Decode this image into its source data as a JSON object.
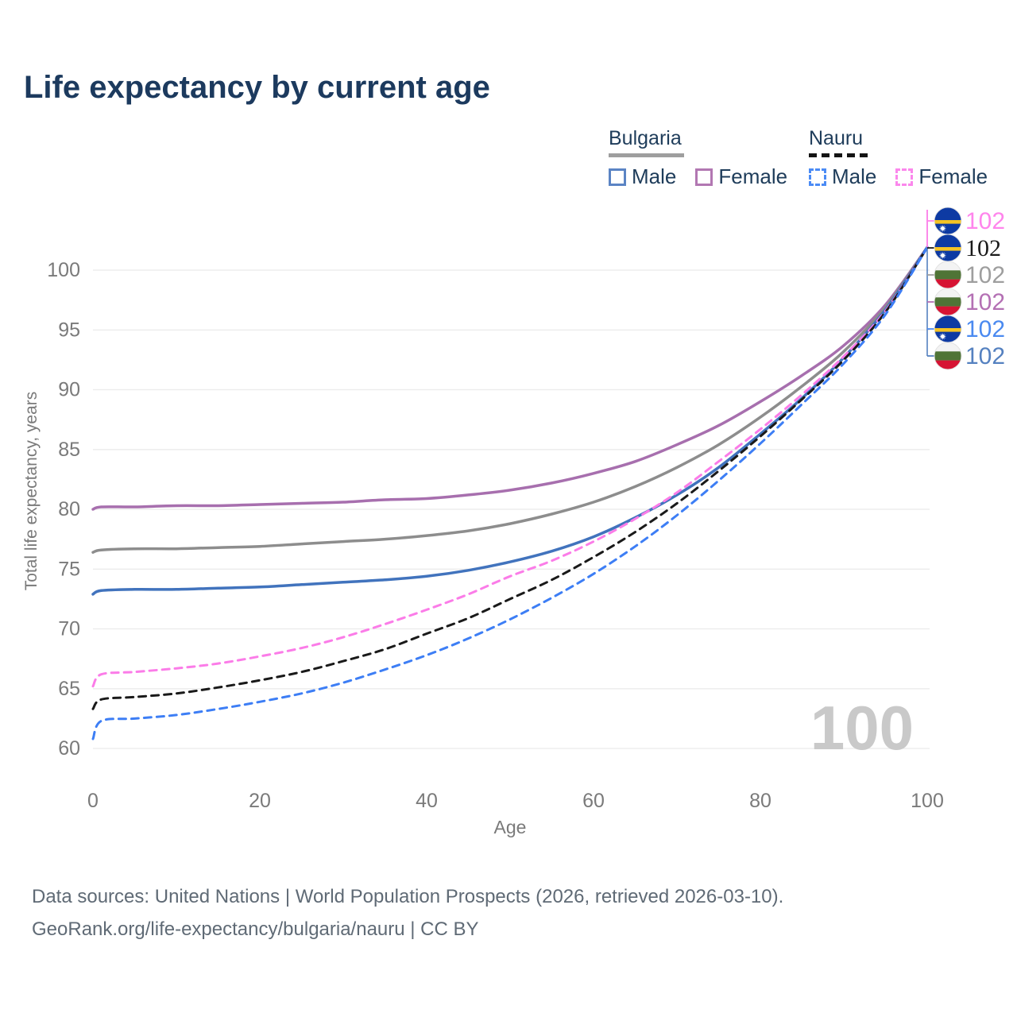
{
  "title": "Life expectancy by current age",
  "legend": {
    "groups": [
      {
        "name": "Bulgaria",
        "underline_style": "solid",
        "underline_color": "#9e9e9e",
        "items": [
          {
            "label": "Male",
            "box_color": "#5b84c4",
            "dashed": false
          },
          {
            "label": "Female",
            "box_color": "#b277b2",
            "dashed": false
          }
        ]
      },
      {
        "name": "Nauru",
        "underline_style": "dashed",
        "underline_color": "#141414",
        "items": [
          {
            "label": "Male",
            "box_color": "#4b8bf5",
            "dashed": true
          },
          {
            "label": "Female",
            "box_color": "#fb87ec",
            "dashed": true
          }
        ]
      }
    ]
  },
  "watermark": "100",
  "chart_data": {
    "type": "line",
    "title": "Life expectancy by current age",
    "xlabel": "Age",
    "ylabel": "Total life expectancy, years",
    "x_ticks": [
      0,
      20,
      40,
      60,
      80,
      100
    ],
    "y_ticks": [
      60,
      65,
      70,
      75,
      80,
      85,
      90,
      95,
      100
    ],
    "x_range": [
      0,
      100
    ],
    "y_range": [
      58,
      103.5
    ],
    "grid": "horizontal",
    "ages": [
      0,
      1,
      5,
      10,
      15,
      20,
      25,
      30,
      35,
      40,
      45,
      50,
      55,
      60,
      65,
      70,
      75,
      80,
      85,
      90,
      95,
      100
    ],
    "series": [
      {
        "key": "bulgaria_female",
        "name": "Bulgaria Female",
        "country": "Bulgaria",
        "sex": "Female",
        "color": "#a76fae",
        "dashed": false,
        "values": [
          80.0,
          80.2,
          80.2,
          80.3,
          80.3,
          80.4,
          80.5,
          80.6,
          80.8,
          80.9,
          81.2,
          81.6,
          82.2,
          83.0,
          84.0,
          85.4,
          87.0,
          89.0,
          91.2,
          93.7,
          97.1,
          101.9
        ]
      },
      {
        "key": "bulgaria_both",
        "name": "Bulgaria",
        "country": "Bulgaria",
        "sex": "Both",
        "color": "#8d8d8d",
        "dashed": false,
        "values": [
          76.4,
          76.6,
          76.7,
          76.7,
          76.8,
          76.9,
          77.1,
          77.3,
          77.5,
          77.8,
          78.2,
          78.8,
          79.6,
          80.6,
          81.9,
          83.5,
          85.4,
          87.7,
          90.3,
          93.2,
          96.9,
          101.9
        ]
      },
      {
        "key": "bulgaria_male",
        "name": "Bulgaria Male",
        "country": "Bulgaria",
        "sex": "Male",
        "color": "#4173bd",
        "dashed": false,
        "values": [
          72.9,
          73.2,
          73.3,
          73.3,
          73.4,
          73.5,
          73.7,
          73.9,
          74.1,
          74.4,
          74.9,
          75.6,
          76.5,
          77.7,
          79.3,
          81.2,
          83.5,
          86.3,
          89.3,
          92.7,
          96.7,
          101.9
        ]
      },
      {
        "key": "nauru_female",
        "name": "Nauru Female",
        "country": "Nauru",
        "sex": "Female",
        "color": "#fb7ce8",
        "dashed": true,
        "values": [
          65.2,
          66.2,
          66.4,
          66.7,
          67.1,
          67.7,
          68.4,
          69.3,
          70.4,
          71.6,
          72.9,
          74.4,
          75.7,
          77.3,
          79.2,
          81.4,
          84.0,
          86.7,
          89.6,
          92.8,
          96.6,
          101.9
        ]
      },
      {
        "key": "nauru_both",
        "name": "Nauru",
        "country": "Nauru",
        "sex": "Both",
        "color": "#1a1a1a",
        "dashed": true,
        "values": [
          63.3,
          64.1,
          64.3,
          64.6,
          65.1,
          65.7,
          66.4,
          67.3,
          68.3,
          69.6,
          70.9,
          72.5,
          74.1,
          76.0,
          78.1,
          80.5,
          83.2,
          86.1,
          89.2,
          92.5,
          96.5,
          101.9
        ]
      },
      {
        "key": "nauru_male",
        "name": "Nauru Male",
        "country": "Nauru",
        "sex": "Male",
        "color": "#3d7ef5",
        "dashed": true,
        "values": [
          60.8,
          62.3,
          62.5,
          62.8,
          63.3,
          63.9,
          64.6,
          65.5,
          66.6,
          67.8,
          69.2,
          70.8,
          72.6,
          74.6,
          76.9,
          79.5,
          82.4,
          85.5,
          88.8,
          92.2,
          96.3,
          101.9
        ]
      }
    ],
    "end_labels": [
      {
        "series": "nauru_female",
        "value": "102",
        "color": "#ff85ec",
        "flag": "nauru",
        "serif": false
      },
      {
        "series": "nauru_both",
        "value": "102",
        "color": "#1a1a1a",
        "flag": "nauru",
        "serif": true
      },
      {
        "series": "bulgaria_both",
        "value": "102",
        "color": "#9e9e9e",
        "flag": "bulgaria",
        "serif": false
      },
      {
        "series": "bulgaria_female",
        "value": "102",
        "color": "#b470b4",
        "flag": "bulgaria",
        "serif": false
      },
      {
        "series": "nauru_male",
        "value": "102",
        "color": "#4b8af0",
        "flag": "nauru",
        "serif": false
      },
      {
        "series": "bulgaria_male",
        "value": "102",
        "color": "#5581c0",
        "flag": "bulgaria",
        "serif": false
      }
    ]
  },
  "colors": {
    "title_text": "#1c3a5e",
    "axis_text": "#7a7a7a",
    "gridline": "#ebebeb",
    "watermark": "#c9c9c9",
    "footer_text": "#5f6a75",
    "leader_top": "#fb7ce8",
    "leader_bottom": "#5581c0"
  },
  "flags": {
    "nauru": {
      "field": "#0d3aa3",
      "stripe": "#f5c324",
      "star": "#ffffff"
    },
    "bulgaria": {
      "top": "#f3f3f3",
      "middle": "#4f7436",
      "bottom": "#d61333"
    }
  },
  "footer": {
    "line1": "Data sources: United Nations | World Population Prospects (2026, retrieved 2026-03-10).",
    "line2": "GeoRank.org/life-expectancy/bulgaria/nauru | CC BY"
  }
}
